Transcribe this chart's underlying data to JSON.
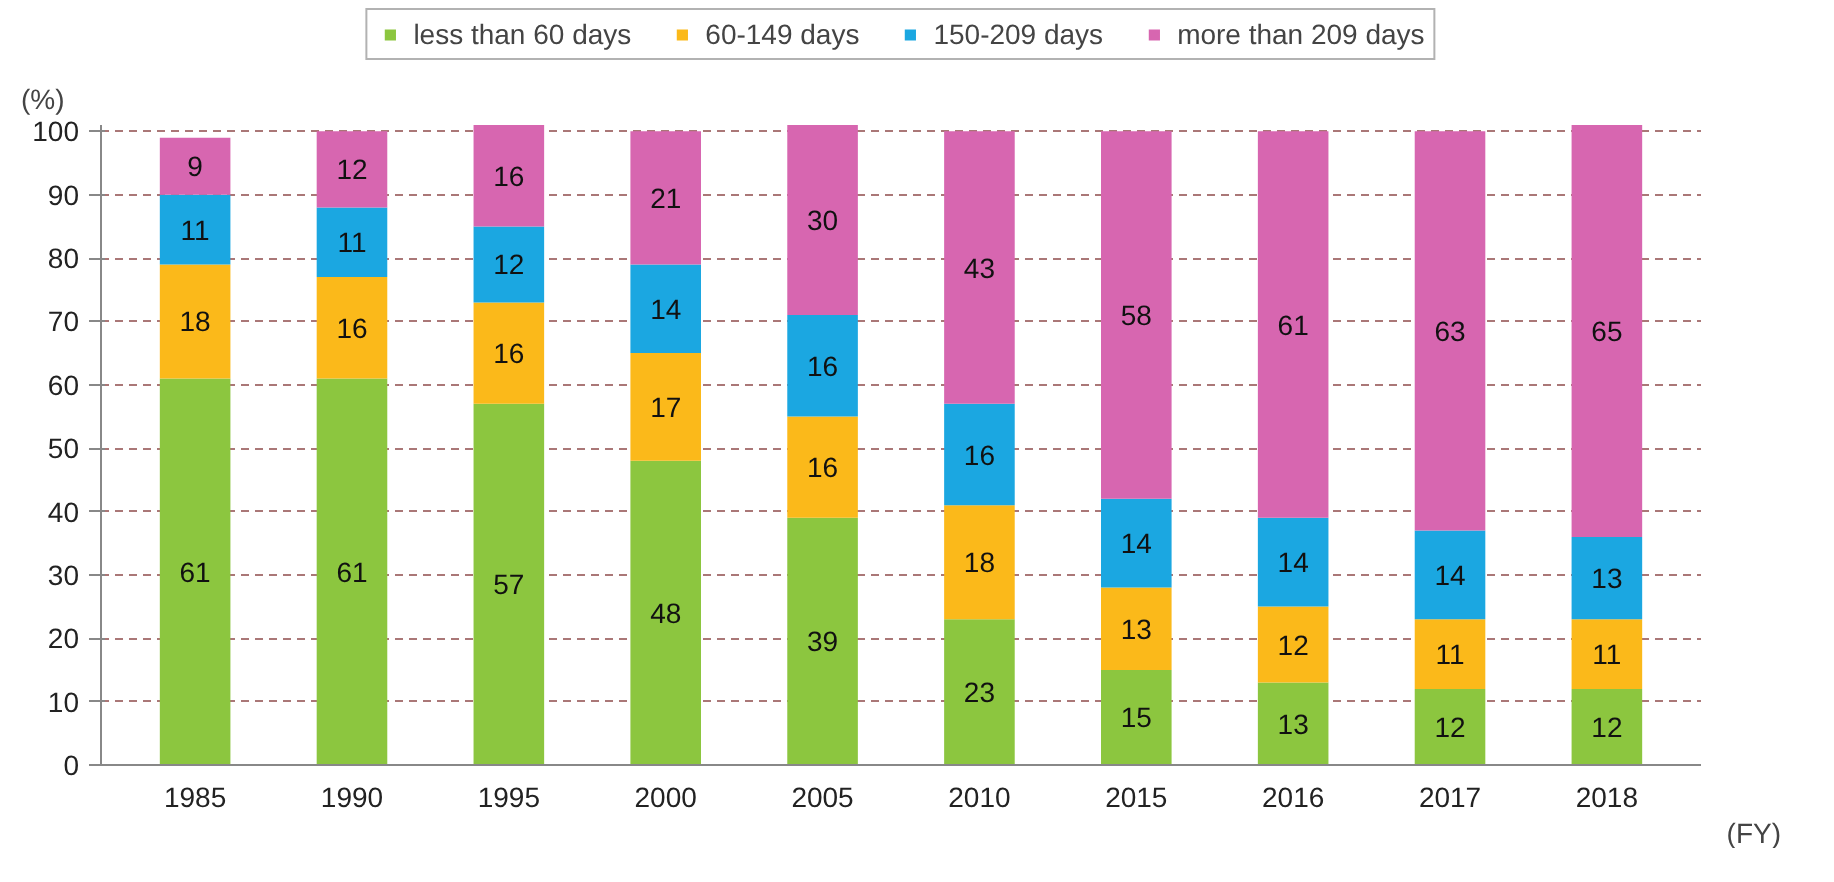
{
  "chart_data": {
    "type": "bar",
    "stacked": true,
    "xlabel": "(FY)",
    "ylabel": "(%)",
    "categories": [
      "1985",
      "1990",
      "1995",
      "2000",
      "2005",
      "2010",
      "2015",
      "2016",
      "2017",
      "2018"
    ],
    "series": [
      {
        "name": "less than 60 days",
        "color": "#8cc63f",
        "values": [
          61,
          61,
          57,
          48,
          39,
          23,
          15,
          13,
          12,
          12
        ]
      },
      {
        "name": "60-149 days",
        "color": "#fbb91a",
        "values": [
          18,
          16,
          16,
          17,
          16,
          18,
          13,
          12,
          11,
          11
        ]
      },
      {
        "name": "150-209 days",
        "color": "#1ba7e1",
        "values": [
          11,
          11,
          12,
          14,
          16,
          16,
          14,
          14,
          14,
          13
        ]
      },
      {
        "name": "more than 209 days",
        "color": "#d766b0",
        "values": [
          9,
          12,
          16,
          21,
          30,
          43,
          58,
          61,
          63,
          65
        ]
      }
    ],
    "ylim": [
      0,
      101
    ],
    "yticks": [
      0,
      10,
      20,
      30,
      40,
      50,
      60,
      70,
      80,
      90,
      100
    ],
    "grid": "y",
    "legend": "top",
    "data_labels": true
  }
}
